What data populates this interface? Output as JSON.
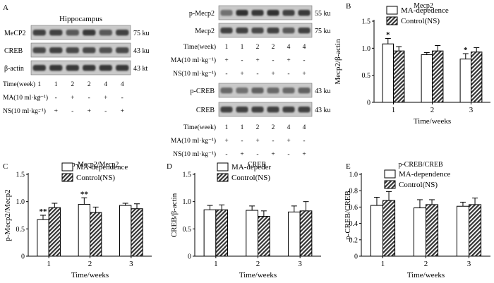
{
  "colors": {
    "blot_bg": "#c9c9c9",
    "band": "#2a2a2a",
    "hatch": "#3a3a3a",
    "ink": "#000000"
  },
  "panel_A": {
    "letter": "A",
    "left_blot": {
      "title": "Hippocampus",
      "rows": [
        {
          "label": "MeCP2",
          "size": "75 ku",
          "intensities": [
            0.85,
            0.85,
            0.7,
            0.9,
            0.7,
            0.85
          ]
        },
        {
          "label": "CREB",
          "size": "43 ku",
          "intensities": [
            0.8,
            0.85,
            0.8,
            0.8,
            0.75,
            0.8
          ]
        },
        {
          "label": "β-actin",
          "size": "43 kt",
          "intensities": [
            0.9,
            0.9,
            0.9,
            0.9,
            0.9,
            0.9
          ]
        }
      ],
      "time_label": "Time(week)",
      "times": [
        "1",
        "1",
        "2",
        "2",
        "4",
        "4"
      ],
      "ma_label": "MA(10 ml·kg⁻¹)",
      "ma": [
        "+",
        "-",
        "+",
        "-",
        "+",
        "-"
      ],
      "ns_label": "NS(10 ml·kg⁻¹)",
      "ns": [
        "-",
        "+",
        "-",
        "+",
        "-",
        "+"
      ]
    },
    "right_blot_top": {
      "rows": [
        {
          "label": "p-Mecp2",
          "size": "55 ku",
          "intensities": [
            0.55,
            0.95,
            0.9,
            0.95,
            0.85,
            0.9
          ]
        },
        {
          "label": "Mecp2",
          "size": "75 ku",
          "intensities": [
            0.85,
            0.85,
            0.8,
            0.85,
            0.7,
            0.85
          ]
        }
      ],
      "time_label": "Time(week)",
      "times": [
        "1",
        "1",
        "2",
        "2",
        "4",
        "4"
      ],
      "ma_label": "MA(10 ml·kg⁻¹)",
      "ma": [
        "+",
        "-",
        "+",
        "-",
        "+",
        "-"
      ],
      "ns_label": "NS(10 ml·kg⁻¹)",
      "ns": [
        "-",
        "+",
        "-",
        "+",
        "-",
        "+"
      ]
    },
    "right_blot_bottom": {
      "rows": [
        {
          "label": "p-CREB",
          "size": "43 ku",
          "intensities": [
            0.6,
            0.55,
            0.65,
            0.6,
            0.6,
            0.65
          ]
        },
        {
          "label": "CREB",
          "size": "43 ku",
          "intensities": [
            0.85,
            0.85,
            0.85,
            0.85,
            0.85,
            0.85
          ]
        }
      ],
      "time_label": "Time(week)",
      "times": [
        "1",
        "1",
        "2",
        "2",
        "4",
        "4"
      ],
      "ma_label": "MA(10 ml·kg⁻¹)",
      "ma": [
        "+",
        "-",
        "+",
        "-",
        "+",
        "-"
      ],
      "ns_label": "NS(10 ml·kg⁻¹)",
      "ns": [
        "-",
        "+",
        "-",
        "+",
        "-",
        "+"
      ]
    }
  },
  "chart_data": [
    {
      "id": "B",
      "type": "bar",
      "letter": "B",
      "title": "Mecp2",
      "xlabel": "Time/weeks",
      "ylabel": "Mecp2/β-actin",
      "categories": [
        "1",
        "2",
        "3"
      ],
      "ylim": [
        0,
        1.5
      ],
      "yticks": [
        0,
        0.5,
        1.0,
        1.5
      ],
      "tick_labels": [
        "0",
        "0.5",
        "1.0",
        "1.5"
      ],
      "series": [
        {
          "name": "MA-depedence",
          "values": [
            1.08,
            0.88,
            0.8
          ],
          "errors": [
            0.1,
            0.04,
            0.1
          ],
          "sig": [
            "*",
            "",
            "*"
          ]
        },
        {
          "name": "Control(NS)",
          "values": [
            0.95,
            0.95,
            0.93
          ],
          "errors": [
            0.08,
            0.1,
            0.08
          ],
          "sig": [
            "",
            "",
            ""
          ]
        }
      ]
    },
    {
      "id": "C",
      "type": "bar",
      "letter": "C",
      "title": "p-Mecp2/Mecp2",
      "xlabel": "Time/weeks",
      "ylabel": "p-Mecp2/Mecp2",
      "categories": [
        "1",
        "2",
        "3"
      ],
      "ylim": [
        0,
        1.5
      ],
      "yticks": [
        0,
        0.5,
        1.0,
        1.5
      ],
      "tick_labels": [
        "0",
        "0.5",
        "1.0",
        "1.5"
      ],
      "series": [
        {
          "name": "MA-dependence",
          "values": [
            0.67,
            0.95,
            0.93
          ],
          "errors": [
            0.08,
            0.12,
            0.04
          ],
          "sig": [
            "**",
            "**",
            ""
          ]
        },
        {
          "name": "Control(NS)",
          "values": [
            0.89,
            0.8,
            0.87
          ],
          "errors": [
            0.08,
            0.1,
            0.09
          ],
          "sig": [
            "",
            "",
            ""
          ]
        }
      ]
    },
    {
      "id": "D",
      "type": "bar",
      "letter": "D",
      "title": "CREB",
      "xlabel": "Time/weeks",
      "ylabel": "CREB/β-actin",
      "categories": [
        "1",
        "2",
        "3"
      ],
      "ylim": [
        0,
        1.5
      ],
      "yticks": [
        0,
        0.5,
        1.0,
        1.5
      ],
      "tick_labels": [
        "0",
        "0.5",
        "1.0",
        "1.5"
      ],
      "series": [
        {
          "name": "MA-depeder",
          "values": [
            0.85,
            0.84,
            0.81
          ],
          "errors": [
            0.08,
            0.08,
            0.11
          ],
          "sig": [
            "",
            "",
            ""
          ]
        },
        {
          "name": "Control(NS)",
          "values": [
            0.85,
            0.73,
            0.83
          ],
          "errors": [
            0.09,
            0.1,
            0.17
          ],
          "sig": [
            "",
            "",
            ""
          ]
        }
      ]
    },
    {
      "id": "E",
      "type": "bar",
      "letter": "E",
      "title": "p-CREB/CREB",
      "xlabel": "Time/weeks",
      "ylabel": "p-CREB/CREB",
      "categories": [
        "1",
        "2",
        "3"
      ],
      "ylim": [
        0,
        1.0
      ],
      "yticks": [
        0,
        0.2,
        0.4,
        0.6,
        0.8,
        1.0
      ],
      "tick_labels": [
        "0",
        "0.2",
        "0.4",
        "0.6",
        "0.8",
        "1.0"
      ],
      "series": [
        {
          "name": "MA-dependence",
          "values": [
            0.62,
            0.59,
            0.61
          ],
          "errors": [
            0.1,
            0.1,
            0.05
          ],
          "sig": [
            "",
            "",
            ""
          ]
        },
        {
          "name": "Control(NS)",
          "values": [
            0.68,
            0.63,
            0.63
          ],
          "errors": [
            0.11,
            0.06,
            0.08
          ],
          "sig": [
            "",
            "",
            ""
          ]
        }
      ]
    }
  ]
}
